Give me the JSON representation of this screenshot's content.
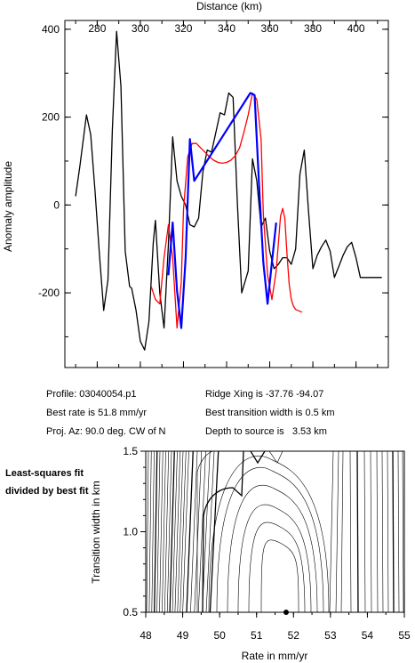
{
  "info": {
    "profile": "Profile: 03040054.p1",
    "best_rate": "Best rate is 51.8 mm/yr",
    "proj_az": "Proj. Az: 90.0 deg. CW of N",
    "ridge_xing": "Ridge Xing is -37.76 -94.07",
    "best_transition": "Best transition width is 0.5 km",
    "depth": "Depth to source is   3.53 km"
  },
  "side_label": "Least-squares fit divided by best fit",
  "chart_data": [
    {
      "type": "line",
      "xlabel": "Distance (km)",
      "ylabel": "Anomaly amplitude",
      "xlim": [
        265,
        415
      ],
      "ylim": [
        -370,
        420
      ],
      "xticks": [
        280,
        300,
        320,
        340,
        360,
        380,
        400
      ],
      "yticks": [
        400,
        200,
        0,
        -200
      ],
      "colors": {
        "observed": "#000000",
        "model": "#ff0000",
        "fit": "#0000ff"
      },
      "series": [
        {
          "key": "observed",
          "x": [
            270,
            272,
            275,
            277,
            279,
            281,
            283,
            285,
            287,
            289,
            291,
            293,
            295,
            296,
            298,
            300,
            302,
            304,
            306,
            307,
            309,
            311,
            313,
            315,
            317,
            319,
            321,
            323,
            325,
            327,
            329,
            331,
            333,
            335,
            337,
            339,
            341,
            343,
            345,
            347,
            350,
            352,
            354,
            356,
            358,
            360,
            362,
            364,
            366,
            368,
            370,
            372,
            374,
            376,
            378,
            380,
            382,
            384,
            386,
            388,
            390,
            392,
            394,
            396,
            398,
            400,
            402,
            404,
            406,
            408,
            410,
            412
          ],
          "y": [
            20,
            90,
            205,
            160,
            30,
            -110,
            -240,
            -170,
            170,
            395,
            270,
            -105,
            -185,
            -190,
            -240,
            -310,
            -330,
            -265,
            -85,
            -35,
            -200,
            -280,
            -90,
            155,
            55,
            20,
            0,
            -45,
            -50,
            -30,
            75,
            125,
            120,
            165,
            210,
            205,
            255,
            245,
            5,
            -200,
            -150,
            105,
            55,
            -50,
            -30,
            -105,
            -145,
            -135,
            -120,
            -120,
            -135,
            -100,
            70,
            125,
            -15,
            -145,
            -115,
            -95,
            -80,
            -105,
            -165,
            -140,
            -115,
            -95,
            -85,
            -120,
            -165,
            -165,
            -165,
            -165,
            -165,
            -165
          ]
        },
        {
          "key": "model",
          "x": [
            305,
            307,
            309,
            311,
            313,
            315,
            317,
            319,
            320,
            322,
            324,
            326,
            328,
            330,
            332,
            334,
            336,
            338,
            340,
            342,
            344,
            346,
            348,
            350,
            352,
            354,
            356,
            357,
            359,
            361,
            363,
            365,
            366,
            367,
            368,
            369,
            370,
            371,
            372,
            373,
            374,
            375
          ],
          "y": [
            -185,
            -215,
            -225,
            -120,
            -45,
            -120,
            -280,
            -175,
            -10,
            110,
            140,
            140,
            130,
            120,
            110,
            102,
            97,
            95,
            97,
            102,
            112,
            130,
            165,
            205,
            255,
            240,
            150,
            -20,
            -160,
            -215,
            -150,
            -25,
            -8,
            -30,
            -110,
            -180,
            -215,
            -230,
            -238,
            -240,
            -242,
            -244
          ]
        },
        {
          "key": "fit",
          "x": [
            313,
            315,
            317,
            319,
            321,
            323,
            325,
            351,
            353,
            355,
            357,
            359,
            361,
            363
          ],
          "y": [
            -160,
            -40,
            -195,
            -280,
            -120,
            150,
            55,
            255,
            250,
            50,
            -130,
            -225,
            -130,
            -40
          ]
        }
      ]
    },
    {
      "type": "contour",
      "xlabel": "Rate in mm/yr",
      "ylabel": "Transition width in km",
      "xlim": [
        48,
        55
      ],
      "ylim": [
        0.5,
        1.5
      ],
      "xticks": [
        48,
        49,
        50,
        51,
        52,
        53,
        54,
        55
      ],
      "yticks": [
        0.5,
        1.0,
        1.5
      ],
      "best_fit_point": {
        "x": 51.8,
        "y": 0.5
      }
    }
  ]
}
